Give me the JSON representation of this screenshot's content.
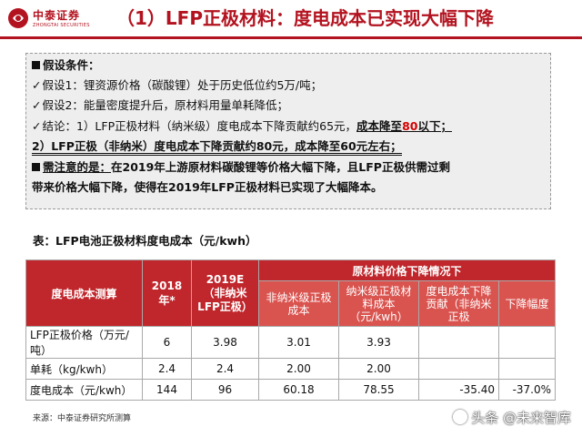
{
  "header": {
    "logo_cn": "中泰证券",
    "logo_en": "ZHONGTAI SECURITIES",
    "title": "（1）LFP正极材料：度电成本已实现大幅下降",
    "brand_color": "#b3121f"
  },
  "assumptions": {
    "heading": "假设条件：",
    "items": [
      "假设1：锂资源价格（碳酸锂）处于历史低位约5万/吨；",
      "假设2：能量密度提升后，原材料用量单耗降低；"
    ],
    "conclusion_a_prefix": "结论：1）LFP正极材料（纳米级）度电成本下降贡献约65元，",
    "conclusion_a_emph": "成本降至",
    "conclusion_a_red": "80",
    "conclusion_a_suffix": "以下；",
    "conclusion_b": "2）LFP正极（非纳米）度电成本下降贡献约80元，成本降至60元左右；",
    "note_emph": "需注意的是：",
    "note_text": "在2019年上游原材料碳酸锂等价格大幅下降，且LFP正极供需过剩",
    "note_text2": "带来价格大幅下降，使得在2019年LFP正极材料已实现了大幅降本。"
  },
  "table": {
    "caption": "表：LFP电池正极材料度电成本（元/kwh）",
    "col_header": "度电成本测算",
    "col_2018": "2018年*",
    "col_2019": "2019E（非纳米LFP正极）",
    "group_header": "原材料价格下降情况下",
    "sub_headers": [
      "非纳米级正极成本",
      "纳米级正极材料成本（元/kwh）",
      "度电成本下降贡献（非纳米正极",
      "下降幅度"
    ],
    "rows": [
      {
        "label": "LFP正极价格（万元/吨）",
        "c2018": "6",
        "c2019": "3.98",
        "s1": "3.01",
        "s2": "3.93",
        "s3": "",
        "s4": ""
      },
      {
        "label": "单耗（kg/kwh）",
        "c2018": "2.4",
        "c2019": "2.4",
        "s1": "2.00",
        "s2": "2.00",
        "s3": "",
        "s4": ""
      },
      {
        "label": "度电成本（元/kwh）",
        "c2018": "144",
        "c2019": "96",
        "s1": "60.18",
        "s2": "78.55",
        "s3": "-35.40",
        "s4": "-37.0%"
      }
    ],
    "header_color": "#c0272d"
  },
  "footer": {
    "source": "来源：中泰证券研究所测算",
    "brand": "头条 @未来智库"
  }
}
